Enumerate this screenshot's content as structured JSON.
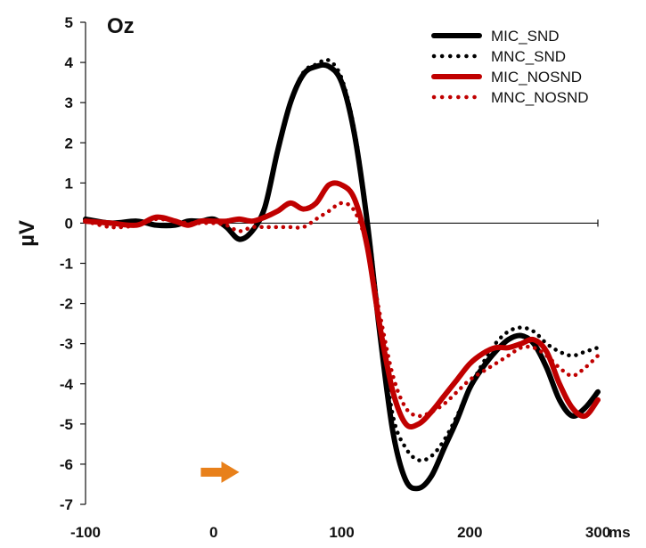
{
  "chart_data": {
    "type": "line",
    "title": "Oz",
    "ylabel": "µV",
    "xlabel": "",
    "x_unit_label": "ms",
    "xlim": [
      -100,
      300
    ],
    "ylim": [
      -7,
      5
    ],
    "x_ticks": [
      -100,
      0,
      100,
      200,
      300
    ],
    "x_tick_labels": [
      "-100",
      "0",
      "100",
      "200",
      "300"
    ],
    "y_ticks": [
      5,
      4,
      3,
      2,
      1,
      0,
      -1,
      -2,
      -3,
      -4,
      -5,
      -6,
      -7
    ],
    "y_tick_labels": [
      "5",
      "4",
      "3",
      "2",
      "1",
      "0",
      "-1",
      "-2",
      "-3",
      "-4",
      "-5",
      "-6",
      "-7"
    ],
    "grid": false,
    "legend_position": "top-right",
    "annotation": {
      "type": "arrow",
      "color": "#E8801A",
      "x": [
        -10,
        20
      ],
      "y": -6.2
    },
    "series": [
      {
        "name": "MIC_SND",
        "color": "#000000",
        "style": "solid",
        "x": [
          -100,
          -80,
          -60,
          -45,
          -30,
          -20,
          -10,
          0,
          10,
          20,
          30,
          40,
          50,
          60,
          70,
          80,
          90,
          100,
          110,
          120,
          130,
          140,
          150,
          160,
          170,
          180,
          190,
          200,
          210,
          220,
          230,
          240,
          250,
          260,
          270,
          280,
          290,
          300
        ],
        "y": [
          0.1,
          0.0,
          0.05,
          -0.05,
          -0.05,
          0.05,
          0.05,
          0.1,
          -0.1,
          -0.4,
          -0.2,
          0.4,
          1.8,
          3.0,
          3.7,
          3.9,
          3.9,
          3.5,
          2.2,
          0.0,
          -2.8,
          -5.2,
          -6.4,
          -6.6,
          -6.3,
          -5.6,
          -4.9,
          -4.1,
          -3.6,
          -3.2,
          -2.9,
          -2.8,
          -3.0,
          -3.6,
          -4.4,
          -4.8,
          -4.6,
          -4.2
        ]
      },
      {
        "name": "MNC_SND",
        "color": "#000000",
        "style": "dotted",
        "x": [
          -100,
          -80,
          -60,
          -45,
          -30,
          -20,
          -10,
          0,
          10,
          20,
          30,
          40,
          50,
          60,
          70,
          80,
          90,
          100,
          110,
          120,
          130,
          140,
          150,
          160,
          170,
          180,
          190,
          200,
          210,
          220,
          230,
          240,
          250,
          260,
          270,
          280,
          290,
          300
        ],
        "y": [
          0.1,
          0.0,
          0.05,
          -0.05,
          -0.05,
          0.05,
          0.05,
          0.1,
          -0.1,
          -0.4,
          -0.2,
          0.4,
          1.8,
          3.0,
          3.75,
          3.95,
          4.05,
          3.6,
          2.3,
          0.1,
          -2.6,
          -4.8,
          -5.6,
          -5.9,
          -5.8,
          -5.4,
          -4.8,
          -4.1,
          -3.5,
          -3.0,
          -2.7,
          -2.6,
          -2.7,
          -3.0,
          -3.2,
          -3.3,
          -3.2,
          -3.1
        ]
      },
      {
        "name": "MIC_NOSND",
        "color": "#C00000",
        "style": "solid",
        "x": [
          -100,
          -80,
          -60,
          -45,
          -30,
          -20,
          -10,
          0,
          10,
          20,
          30,
          40,
          50,
          60,
          70,
          80,
          90,
          100,
          110,
          120,
          130,
          140,
          150,
          160,
          170,
          180,
          190,
          200,
          210,
          220,
          230,
          240,
          250,
          260,
          270,
          280,
          290,
          300
        ],
        "y": [
          0.05,
          0.0,
          -0.05,
          0.15,
          0.05,
          -0.05,
          0.05,
          0.05,
          0.05,
          0.1,
          0.05,
          0.15,
          0.3,
          0.5,
          0.35,
          0.5,
          0.95,
          0.95,
          0.6,
          -0.6,
          -2.6,
          -4.2,
          -5.0,
          -5.0,
          -4.7,
          -4.3,
          -3.9,
          -3.5,
          -3.25,
          -3.1,
          -3.1,
          -3.0,
          -2.9,
          -3.2,
          -4.0,
          -4.6,
          -4.8,
          -4.4
        ]
      },
      {
        "name": "MNC_NOSND",
        "color": "#C00000",
        "style": "dotted",
        "x": [
          -100,
          -80,
          -60,
          -45,
          -30,
          -20,
          -10,
          0,
          10,
          20,
          30,
          40,
          50,
          60,
          70,
          80,
          90,
          100,
          110,
          120,
          130,
          140,
          150,
          160,
          170,
          180,
          190,
          200,
          210,
          220,
          230,
          240,
          250,
          260,
          270,
          280,
          290,
          300
        ],
        "y": [
          0.05,
          -0.1,
          -0.05,
          0.1,
          0.05,
          0.0,
          0.0,
          0.0,
          -0.05,
          -0.2,
          -0.1,
          -0.1,
          -0.1,
          -0.1,
          -0.1,
          0.1,
          0.3,
          0.5,
          0.3,
          -0.6,
          -2.3,
          -3.8,
          -4.6,
          -4.8,
          -4.7,
          -4.5,
          -4.2,
          -3.9,
          -3.7,
          -3.5,
          -3.3,
          -3.1,
          -3.1,
          -3.3,
          -3.6,
          -3.8,
          -3.6,
          -3.3
        ]
      }
    ]
  }
}
